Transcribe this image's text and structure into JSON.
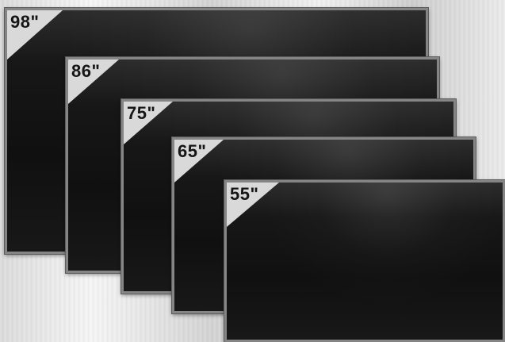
{
  "panels": [
    {
      "label": "98\""
    },
    {
      "label": "86\""
    },
    {
      "label": "75\""
    },
    {
      "label": "65\""
    },
    {
      "label": "55\""
    }
  ],
  "colors": {
    "panel_screen": "#111111",
    "panel_bezel": "#858585",
    "corner_tag": "#d9d9d9",
    "label_text": "#151515"
  }
}
